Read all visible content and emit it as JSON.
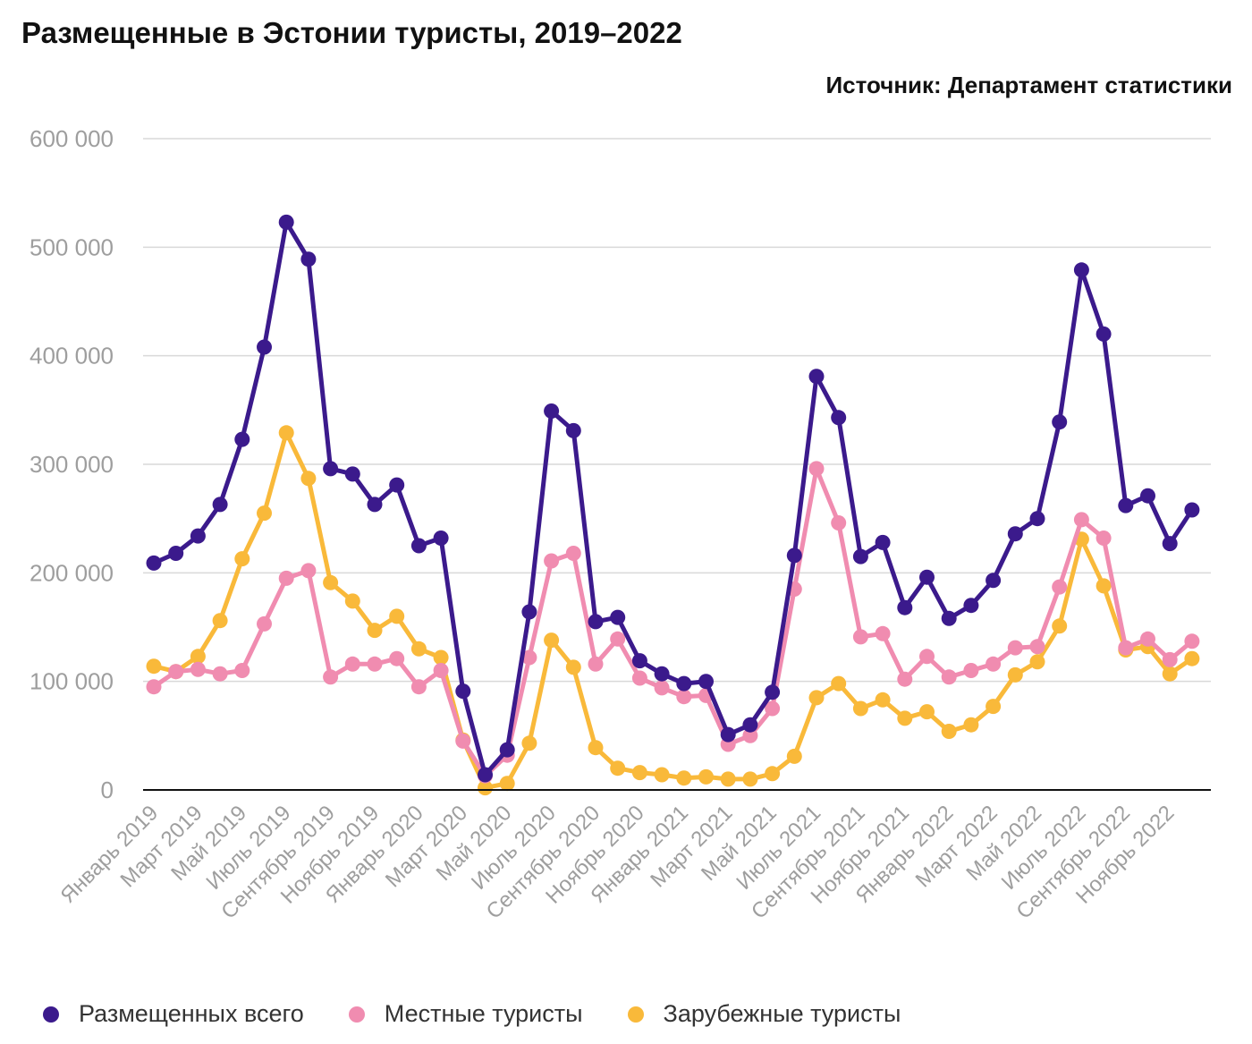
{
  "header": {
    "title": "Размещенные в Эстонии туристы, 2019–2022",
    "source": "Источник: Департамент статистики"
  },
  "chart_data": {
    "type": "line",
    "title": "Размещенные в Эстонии туристы, 2019–2022",
    "xlabel": "",
    "ylabel": "",
    "ylim": [
      0,
      600000
    ],
    "y_ticks": [
      0,
      100000,
      200000,
      300000,
      400000,
      500000,
      600000
    ],
    "y_tick_labels": [
      "0",
      "100 000",
      "200 000",
      "300 000",
      "400 000",
      "500 000",
      "600 000"
    ],
    "grid": true,
    "legend_position": "bottom",
    "x_tick_labels": [
      "Январь 2019",
      "Март 2019",
      "Май 2019",
      "Июль 2019",
      "Сентябрь 2019",
      "Ноябрь 2019",
      "Январь 2020",
      "Март 2020",
      "Май 2020",
      "Июль 2020",
      "Сентябрь 2020",
      "Ноябрь 2020",
      "Январь 2021",
      "Март 2021",
      "Май 2021",
      "Июль 2021",
      "Сентябрь 2021",
      "Ноябрь 2021",
      "Январь 2022",
      "Март 2022",
      "Май 2022",
      "Июль 2022",
      "Сентябрь 2022",
      "Ноябрь 2022"
    ],
    "x": [
      "Январь 2019",
      "Февраль 2019",
      "Март 2019",
      "Апрель 2019",
      "Май 2019",
      "Июнь 2019",
      "Июль 2019",
      "Август 2019",
      "Сентябрь 2019",
      "Октябрь 2019",
      "Ноябрь 2019",
      "Декабрь 2019",
      "Январь 2020",
      "Февраль 2020",
      "Март 2020",
      "Апрель 2020",
      "Май 2020",
      "Июнь 2020",
      "Июль 2020",
      "Август 2020",
      "Сентябрь 2020",
      "Октябрь 2020",
      "Ноябрь 2020",
      "Декабрь 2020",
      "Январь 2021",
      "Февраль 2021",
      "Март 2021",
      "Апрель 2021",
      "Май 2021",
      "Июнь 2021",
      "Июль 2021",
      "Август 2021",
      "Сентябрь 2021",
      "Октябрь 2021",
      "Ноябрь 2021",
      "Декабрь 2021",
      "Январь 2022",
      "Февраль 2022",
      "Март 2022",
      "Апрель 2022",
      "Май 2022",
      "Июнь 2022",
      "Июль 2022",
      "Август 2022",
      "Сентябрь 2022",
      "Октябрь 2022",
      "Ноябрь 2022",
      "Декабрь 2022"
    ],
    "series": [
      {
        "name": "Размещенных всего",
        "color": "#3b1a8c",
        "values": [
          209000,
          218000,
          234000,
          263000,
          323000,
          408000,
          523000,
          489000,
          296000,
          291000,
          263000,
          281000,
          225000,
          232000,
          91000,
          14000,
          37000,
          164000,
          349000,
          331000,
          155000,
          159000,
          119000,
          107000,
          98000,
          100000,
          51000,
          60000,
          90000,
          216000,
          381000,
          343000,
          215000,
          228000,
          168000,
          196000,
          158000,
          170000,
          193000,
          236000,
          250000,
          339000,
          479000,
          420000,
          262000,
          271000,
          227000,
          258000
        ]
      },
      {
        "name": "Местные туристы",
        "color": "#f08cb0",
        "values": [
          95000,
          109000,
          111000,
          107000,
          110000,
          153000,
          195000,
          202000,
          104000,
          116000,
          116000,
          121000,
          95000,
          110000,
          45000,
          13000,
          32000,
          122000,
          211000,
          218000,
          116000,
          139000,
          103000,
          94000,
          86000,
          87000,
          42000,
          50000,
          75000,
          185000,
          296000,
          246000,
          141000,
          144000,
          102000,
          123000,
          104000,
          110000,
          116000,
          131000,
          132000,
          187000,
          249000,
          232000,
          131000,
          139000,
          120000,
          137000
        ]
      },
      {
        "name": "Зарубежные туристы",
        "color": "#f9b93a",
        "values": [
          114000,
          109000,
          123000,
          156000,
          213000,
          255000,
          329000,
          287000,
          191000,
          174000,
          147000,
          160000,
          130000,
          122000,
          46000,
          2000,
          6000,
          43000,
          138000,
          113000,
          39000,
          20000,
          16000,
          14000,
          11000,
          12000,
          10000,
          10000,
          15000,
          31000,
          85000,
          98000,
          75000,
          83000,
          66000,
          72000,
          54000,
          60000,
          77000,
          106000,
          118000,
          151000,
          231000,
          188000,
          129000,
          132000,
          107000,
          121000
        ]
      }
    ]
  }
}
